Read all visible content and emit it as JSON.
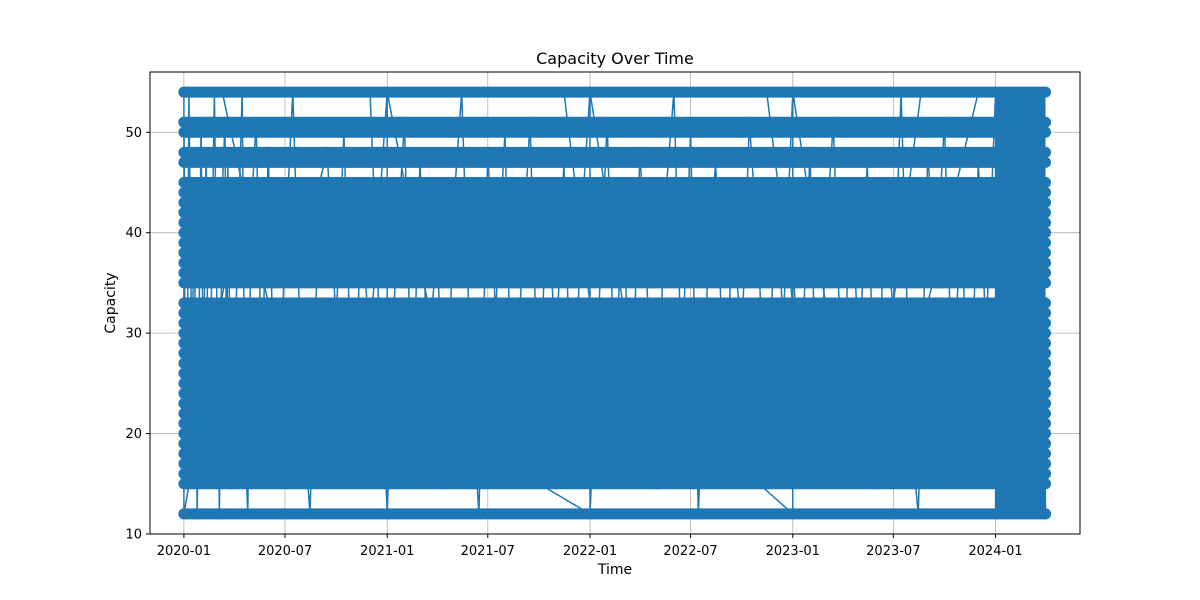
{
  "chart_data": {
    "type": "line",
    "title": "Capacity Over Time",
    "xlabel": "Time",
    "ylabel": "Capacity",
    "x_ticks": [
      "2020-01",
      "2020-07",
      "2021-01",
      "2021-07",
      "2022-01",
      "2022-07",
      "2023-01",
      "2023-07",
      "2024-01"
    ],
    "y_ticks": [
      10,
      20,
      30,
      40,
      50
    ],
    "xlim": [
      "2019-11-01",
      "2024-06-01"
    ],
    "ylim": [
      10,
      56
    ],
    "grid": true,
    "marker": "circle",
    "series_color": "#1f77b4",
    "x_range": [
      "2020-01-01",
      "2024-03-31"
    ],
    "capacity_levels": [
      12,
      15,
      16,
      17,
      18,
      19,
      20,
      21,
      22,
      23,
      24,
      25,
      26,
      27,
      28,
      29,
      30,
      31,
      32,
      33,
      35,
      36,
      37,
      38,
      39,
      40,
      41,
      42,
      43,
      44,
      45,
      47,
      48,
      50,
      51,
      54
    ],
    "series": [
      {
        "points": [
          [
            "2020-01-01",
            54
          ],
          [
            "2020-01-01",
            12
          ],
          [
            "2020-01-01",
            51
          ],
          [
            "2020-01-02",
            47
          ],
          [
            "2020-01-02",
            45
          ],
          [
            "2020-01-03",
            20
          ],
          [
            "2020-01-04",
            32
          ],
          [
            "2020-01-06",
            15
          ],
          [
            "2020-01-10",
            54
          ],
          [
            "2020-01-15",
            28
          ],
          [
            "2020-01-20",
            40
          ],
          [
            "2020-01-25",
            12
          ],
          [
            "2020-02-01",
            51
          ],
          [
            "2020-02-05",
            24
          ],
          [
            "2020-02-10",
            48
          ],
          [
            "2020-02-15",
            17
          ],
          [
            "2020-02-20",
            36
          ],
          [
            "2020-02-25",
            54
          ],
          [
            "2020-03-01",
            30
          ],
          [
            "2020-03-05",
            12
          ],
          [
            "2020-03-10",
            44
          ],
          [
            "2020-03-15",
            51
          ],
          [
            "2020-03-18",
            22
          ],
          [
            "2020-03-20",
            47
          ],
          [
            "2020-03-23",
            33
          ],
          [
            "2020-03-26",
            15
          ],
          [
            "2020-04-15",
            54
          ],
          [
            "2020-04-20",
            19
          ],
          [
            "2020-04-25",
            12
          ],
          [
            "2020-05-01",
            42
          ],
          [
            "2020-05-10",
            51
          ],
          [
            "2020-05-20",
            26
          ],
          [
            "2020-06-01",
            48
          ],
          [
            "2020-06-15",
            16
          ],
          [
            "2020-07-01",
            38
          ],
          [
            "2020-07-15",
            54
          ],
          [
            "2020-08-01",
            23
          ],
          [
            "2020-08-15",
            12
          ],
          [
            "2020-09-01",
            45
          ],
          [
            "2020-09-15",
            48
          ],
          [
            "2020-10-01",
            31
          ],
          [
            "2020-10-15",
            50
          ],
          [
            "2020-11-01",
            18
          ],
          [
            "2020-11-15",
            41
          ],
          [
            "2020-12-01",
            29
          ],
          [
            "2021-01-01",
            54
          ],
          [
            "2021-01-01",
            12
          ],
          [
            "2021-01-15",
            35
          ],
          [
            "2021-02-01",
            51
          ],
          [
            "2021-02-15",
            21
          ],
          [
            "2021-03-01",
            47
          ],
          [
            "2021-03-15",
            27
          ],
          [
            "2021-04-01",
            39
          ],
          [
            "2021-04-15",
            15
          ],
          [
            "2021-05-01",
            43
          ],
          [
            "2021-05-15",
            54
          ],
          [
            "2021-06-01",
            25
          ],
          [
            "2021-06-15",
            12
          ],
          [
            "2021-07-01",
            48
          ],
          [
            "2021-07-15",
            32
          ],
          [
            "2021-08-01",
            50
          ],
          [
            "2021-08-15",
            17
          ],
          [
            "2021-09-01",
            37
          ],
          [
            "2021-09-15",
            51
          ],
          [
            "2021-10-01",
            20
          ],
          [
            "2021-10-15",
            44
          ],
          [
            "2021-11-01",
            28
          ],
          [
            "2021-11-15",
            47
          ],
          [
            "2021-12-01",
            16
          ],
          [
            "2021-12-15",
            40
          ],
          [
            "2022-01-01",
            54
          ],
          [
            "2022-01-01",
            12
          ],
          [
            "2022-01-15",
            30
          ],
          [
            "2022-02-01",
            51
          ],
          [
            "2022-02-15",
            23
          ],
          [
            "2022-03-01",
            45
          ],
          [
            "2022-03-15",
            19
          ],
          [
            "2022-04-01",
            48
          ],
          [
            "2022-04-15",
            33
          ],
          [
            "2022-05-01",
            15
          ],
          [
            "2022-05-15",
            42
          ],
          [
            "2022-06-01",
            54
          ],
          [
            "2022-06-15",
            26
          ],
          [
            "2022-07-01",
            50
          ],
          [
            "2022-07-15",
            12
          ],
          [
            "2022-08-01",
            36
          ],
          [
            "2022-08-15",
            47
          ],
          [
            "2022-09-01",
            22
          ],
          [
            "2022-09-15",
            41
          ],
          [
            "2022-10-01",
            29
          ],
          [
            "2022-10-15",
            51
          ],
          [
            "2022-11-01",
            37
          ],
          [
            "2022-11-15",
            18
          ],
          [
            "2022-12-01",
            44
          ],
          [
            "2022-12-15",
            31
          ],
          [
            "2023-01-01",
            54
          ],
          [
            "2023-01-01",
            12
          ],
          [
            "2023-01-01",
            37
          ],
          [
            "2023-01-15",
            24
          ],
          [
            "2023-02-01",
            48
          ],
          [
            "2023-02-15",
            16
          ],
          [
            "2023-03-01",
            39
          ],
          [
            "2023-03-15",
            51
          ],
          [
            "2023-04-01",
            21
          ],
          [
            "2023-04-15",
            45
          ],
          [
            "2023-05-01",
            27
          ],
          [
            "2023-05-15",
            47
          ],
          [
            "2023-06-01",
            15
          ],
          [
            "2023-06-15",
            43
          ],
          [
            "2023-07-01",
            32
          ],
          [
            "2023-07-15",
            54
          ],
          [
            "2023-08-01",
            20
          ],
          [
            "2023-08-15",
            12
          ],
          [
            "2023-09-01",
            48
          ],
          [
            "2023-09-15",
            35
          ],
          [
            "2023-10-01",
            51
          ],
          [
            "2023-10-15",
            25
          ],
          [
            "2023-11-01",
            41
          ],
          [
            "2023-11-15",
            17
          ],
          [
            "2023-12-01",
            47
          ],
          [
            "2023-12-15",
            30
          ],
          [
            "2024-01-01",
            54
          ],
          [
            "2024-01-01",
            12
          ],
          [
            "2024-01-15",
            38
          ],
          [
            "2024-02-01",
            22
          ],
          [
            "2024-02-10",
            51
          ],
          [
            "2024-02-20",
            15
          ],
          [
            "2024-03-01",
            45
          ],
          [
            "2024-03-10",
            28
          ],
          [
            "2024-03-20",
            54
          ],
          [
            "2024-03-31",
            12
          ]
        ]
      }
    ]
  }
}
